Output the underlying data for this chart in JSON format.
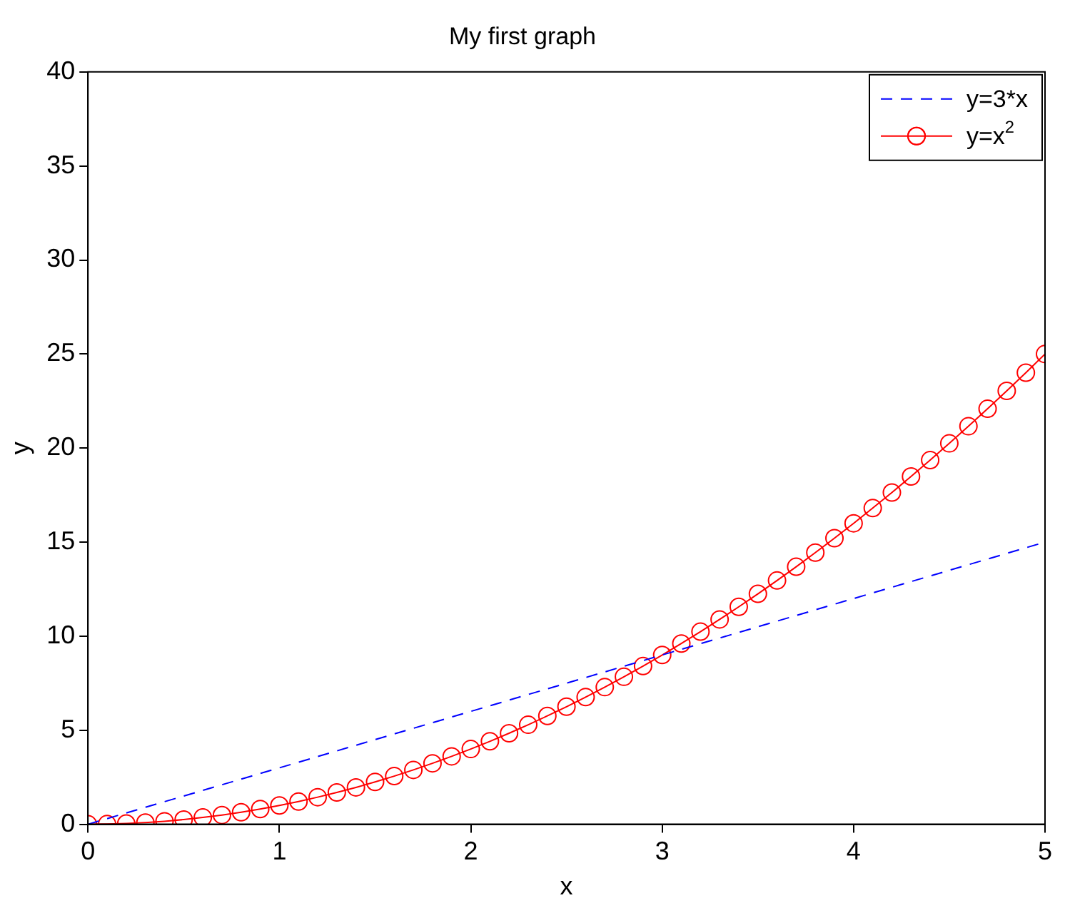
{
  "chart_data": {
    "type": "line",
    "title": "My first graph",
    "xlabel": "x",
    "ylabel": "y",
    "xlim": [
      0,
      5
    ],
    "xticks": [
      0,
      1,
      2,
      3,
      4,
      5
    ],
    "ylim": [
      0,
      40
    ],
    "yticks": [
      0,
      5,
      10,
      15,
      20,
      25,
      30,
      35,
      40
    ],
    "grid": false,
    "legend": "top right",
    "series": [
      {
        "name": "y=3*x",
        "color": "#0000ff",
        "line_style": "dashed",
        "marker": "none",
        "x": [
          0,
          1,
          2,
          3,
          4,
          5
        ],
        "values": [
          0,
          3,
          6,
          9,
          12,
          15
        ]
      },
      {
        "name": "y=x$^{2}$",
        "color": "#ff0000",
        "line_style": "solid",
        "marker": "circle",
        "x": [
          0,
          0.1,
          0.2,
          0.3,
          0.4,
          0.5,
          0.6,
          0.7,
          0.8,
          0.9,
          1,
          1.1,
          1.2,
          1.3,
          1.4,
          1.5,
          1.6,
          1.7,
          1.8,
          1.9,
          2,
          2.1,
          2.2,
          2.3,
          2.4,
          2.5,
          2.6,
          2.7,
          2.8,
          2.9,
          3,
          3.1,
          3.2,
          3.3,
          3.4,
          3.5,
          3.6,
          3.7,
          3.8,
          3.9,
          4,
          4.1,
          4.2,
          4.3,
          4.4,
          4.5,
          4.6,
          4.7,
          4.8,
          4.9,
          5
        ],
        "values": [
          0,
          0.01,
          0.04,
          0.09,
          0.16,
          0.25,
          0.36,
          0.49,
          0.64,
          0.81,
          1,
          1.21,
          1.44,
          1.69,
          1.96,
          2.25,
          2.56,
          2.89,
          3.24,
          3.61,
          4,
          4.41,
          4.84,
          5.29,
          5.76,
          6.25,
          6.76,
          7.29,
          7.84,
          8.41,
          9,
          9.61,
          10.24,
          10.89,
          11.56,
          12.25,
          12.96,
          13.69,
          14.44,
          15.21,
          16,
          16.81,
          17.64,
          18.49,
          19.36,
          20.25,
          21.16,
          22.09,
          23.04,
          24.01,
          25
        ]
      }
    ]
  }
}
